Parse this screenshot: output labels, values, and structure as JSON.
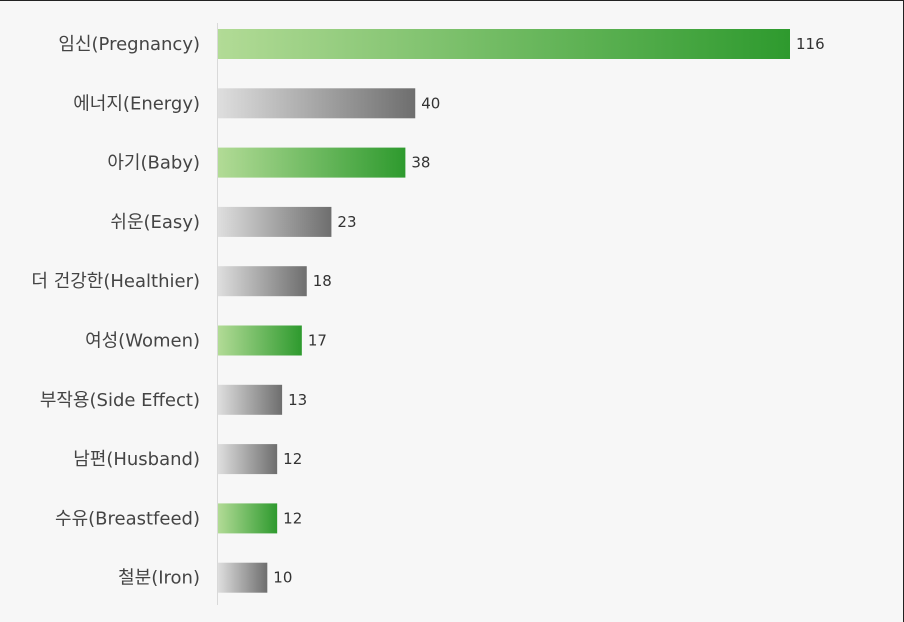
{
  "chart_data": {
    "type": "bar",
    "orientation": "horizontal",
    "categories": [
      "임신(Pregnancy)",
      "에너지(Energy)",
      "아기(Baby)",
      "쉬운(Easy)",
      "더 건강한(Healthier)",
      "여성(Women)",
      "부작용(Side Effect)",
      "남편(Husband)",
      "수유(Breastfeed)",
      "철분(Iron)"
    ],
    "values": [
      116,
      40,
      38,
      23,
      18,
      17,
      13,
      12,
      12,
      10
    ],
    "bar_colors": [
      "green",
      "gray",
      "green",
      "gray",
      "gray",
      "green",
      "gray",
      "gray",
      "green",
      "gray"
    ],
    "title": "",
    "xlabel": "",
    "ylabel": "",
    "grid": false,
    "legend": "none"
  },
  "colors": {
    "green_start": "#b2db96",
    "green_end": "#2e9a2e",
    "gray_start": "#dedede",
    "gray_end": "#6e6e6e"
  }
}
